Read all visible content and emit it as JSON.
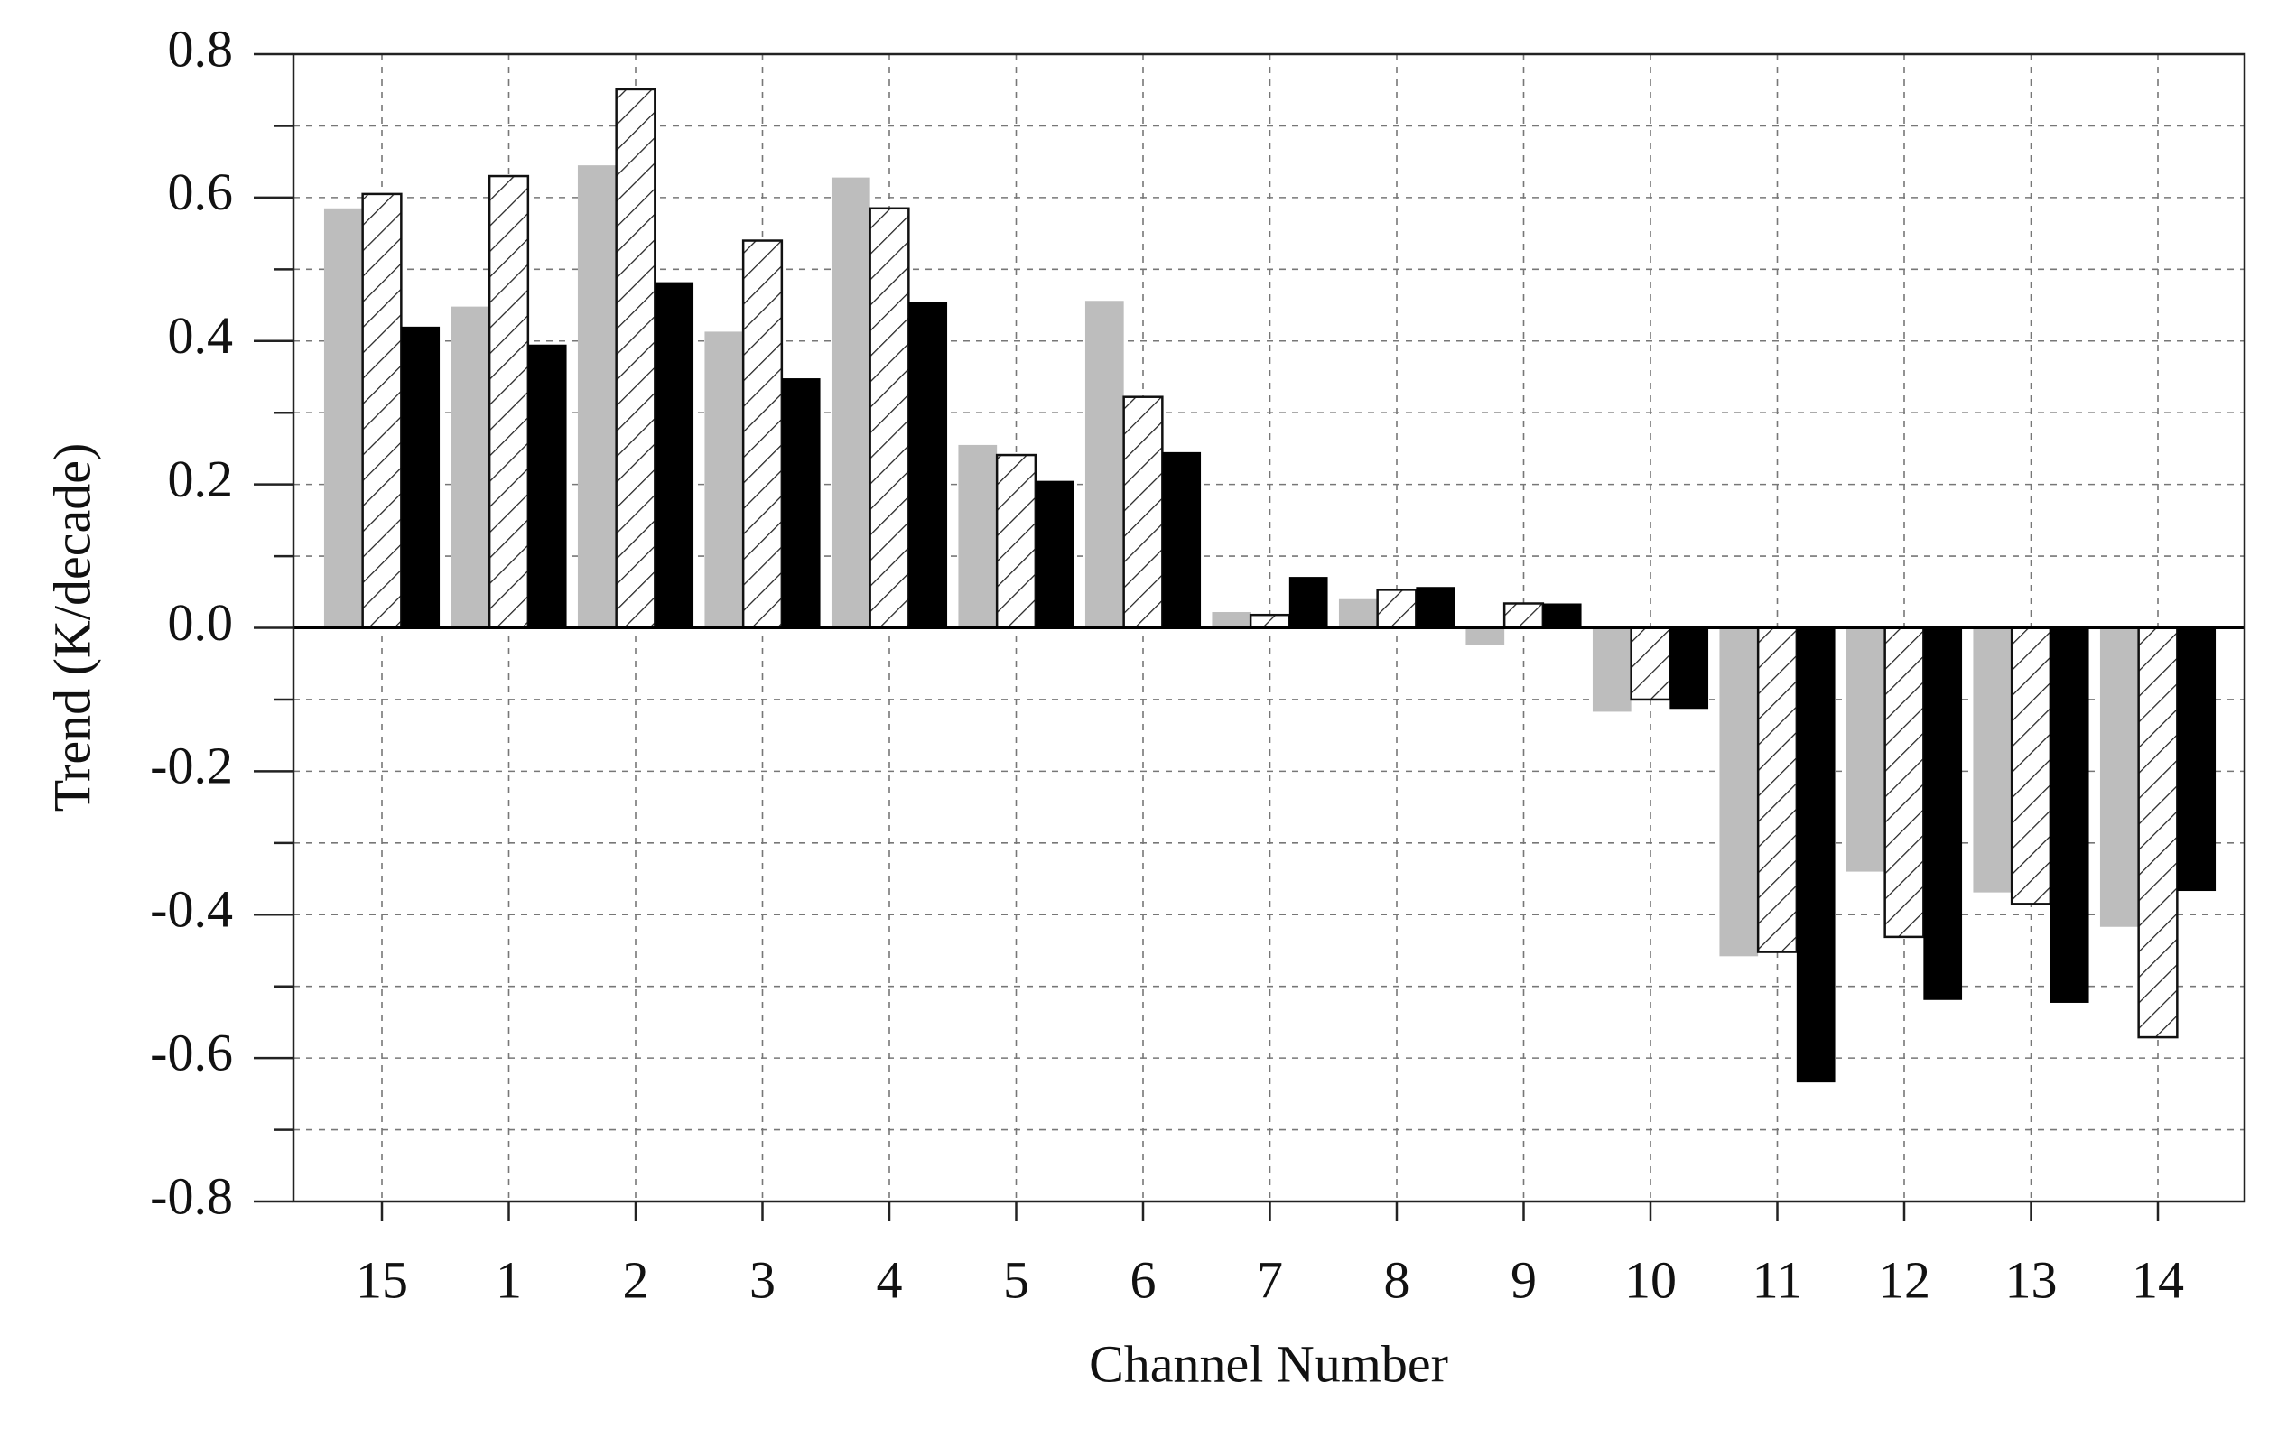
{
  "chart_data": {
    "type": "bar",
    "x_label": "Channel Number",
    "y_label": "Trend (K/decade)",
    "categories": [
      "15",
      "1",
      "2",
      "3",
      "4",
      "5",
      "6",
      "7",
      "8",
      "9",
      "10",
      "11",
      "12",
      "13",
      "14"
    ],
    "series": [
      {
        "color": "#bdbdbd",
        "hatch": false,
        "values": [
          0.585,
          0.448,
          0.645,
          0.413,
          0.628,
          0.255,
          0.456,
          0.022,
          0.04,
          -0.024,
          -0.117,
          -0.458,
          -0.34,
          -0.369,
          -0.417
        ]
      },
      {
        "color": "#ffffff",
        "hatch": true,
        "values": [
          0.605,
          0.63,
          0.751,
          0.54,
          0.585,
          0.241,
          0.322,
          0.018,
          0.053,
          0.034,
          -0.1,
          -0.452,
          -0.431,
          -0.385,
          -0.571
        ]
      },
      {
        "color": "#000000",
        "hatch": false,
        "values": [
          0.42,
          0.395,
          0.482,
          0.348,
          0.454,
          0.205,
          0.245,
          0.071,
          0.057,
          0.034,
          -0.113,
          -0.634,
          -0.519,
          -0.523,
          -0.367
        ]
      }
    ],
    "ylim": [
      -0.8,
      0.8
    ],
    "yticks": [
      -0.8,
      -0.6,
      -0.4,
      -0.2,
      {
        "value": 0,
        "label": "0.0"
      },
      0.2,
      0.4,
      0.6,
      0.8
    ],
    "minor_yticks": [
      -0.7,
      -0.5,
      -0.3,
      -0.1,
      0.1,
      0.3,
      0.5,
      0.7
    ],
    "grid": true
  }
}
